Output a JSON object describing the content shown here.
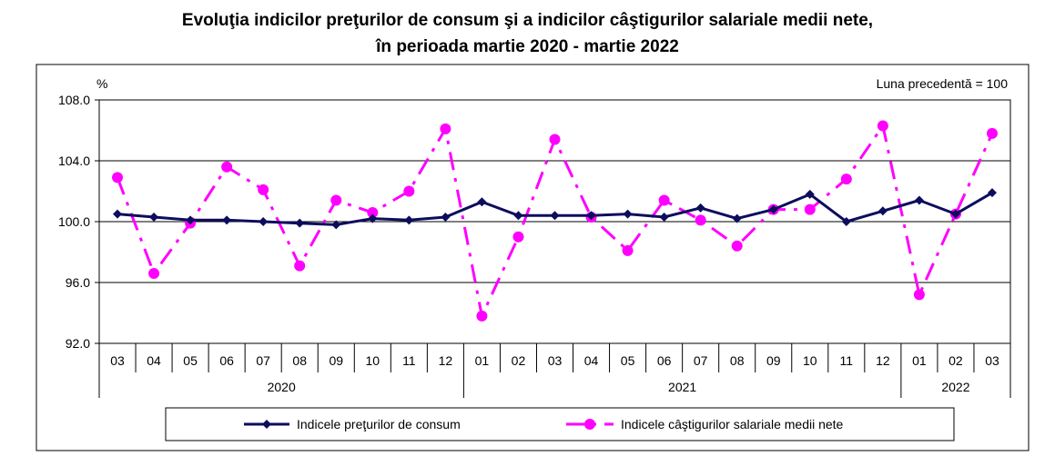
{
  "chart_data": {
    "type": "line",
    "title_line1": "Evoluţia indicilor preţurilor de consum şi a indicilor câştigurilor salariale medii nete,",
    "title_line2": "în perioada martie 2020 - martie 2022",
    "y_unit": "%",
    "base_note": "Luna precedentă = 100",
    "ylim": [
      92,
      108
    ],
    "yticks": [
      "108.0",
      "104.0",
      "100.0",
      "96.0",
      "92.0"
    ],
    "grid": true,
    "legend_position": "bottom",
    "categories": [
      "03",
      "04",
      "05",
      "06",
      "07",
      "08",
      "09",
      "10",
      "11",
      "12",
      "01",
      "02",
      "03",
      "04",
      "05",
      "06",
      "07",
      "08",
      "09",
      "10",
      "11",
      "12",
      "01",
      "02",
      "03"
    ],
    "years": [
      {
        "label": "2020",
        "start": 0,
        "end": 9
      },
      {
        "label": "2021",
        "start": 10,
        "end": 21
      },
      {
        "label": "2022",
        "start": 22,
        "end": 24
      }
    ],
    "series": [
      {
        "name": "Indicele preţurilor de consum",
        "color": "#0d0d5e",
        "marker": "diamond",
        "values": [
          100.5,
          100.3,
          100.1,
          100.1,
          100.0,
          99.9,
          99.8,
          100.2,
          100.1,
          100.3,
          101.3,
          100.4,
          100.4,
          100.4,
          100.5,
          100.3,
          100.9,
          100.2,
          100.8,
          101.8,
          100.0,
          100.7,
          101.4,
          100.5,
          101.9
        ]
      },
      {
        "name": "Indicele câştigurilor salariale medii nete",
        "color": "#ff00ff",
        "marker": "circle",
        "values": [
          102.9,
          96.6,
          99.9,
          103.6,
          102.1,
          97.1,
          101.4,
          100.6,
          102.0,
          106.1,
          93.8,
          99.0,
          105.4,
          100.3,
          98.1,
          101.4,
          100.1,
          98.4,
          100.8,
          100.8,
          102.8,
          106.3,
          95.2,
          100.5,
          105.8
        ]
      }
    ]
  }
}
